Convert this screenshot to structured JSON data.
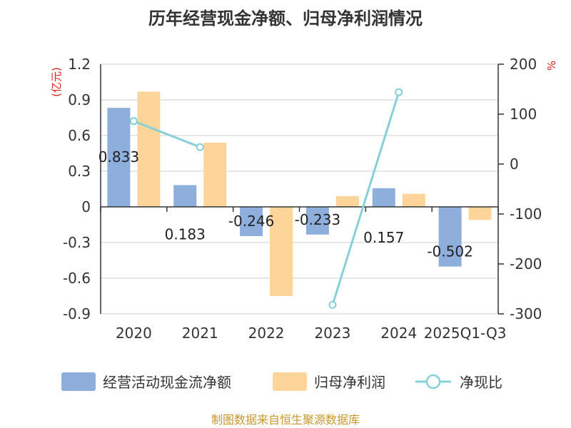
{
  "chart_data": {
    "type": "bar",
    "title": "历年经营现金净额、归母净利润情况",
    "categories": [
      "2020",
      "2021",
      "2022",
      "2023",
      "2024",
      "2025Q1-Q3"
    ],
    "y_left": {
      "unit": "(亿元)",
      "ylim": [
        -0.9,
        1.2
      ],
      "ticks": [
        "1.2",
        "0.9",
        "0.6",
        "0.3",
        "0",
        "-0.3",
        "-0.6",
        "-0.9"
      ]
    },
    "y_right": {
      "unit": "%",
      "ylim": [
        -300,
        200
      ],
      "ticks": [
        "200",
        "100",
        "0",
        "-100",
        "-200",
        "-300"
      ]
    },
    "series": [
      {
        "name": "经营活动现金流净额",
        "type": "bar",
        "axis": "left",
        "color": "#8eaedc",
        "values": [
          0.833,
          0.183,
          -0.246,
          -0.233,
          0.157,
          -0.502
        ],
        "labels": [
          "0.833",
          "0.183",
          "-0.246",
          "-0.233",
          "0.157",
          "-0.502"
        ]
      },
      {
        "name": "归母净利润",
        "type": "bar",
        "axis": "left",
        "color": "#fdd59a",
        "values": [
          0.97,
          0.54,
          -0.75,
          0.09,
          0.11,
          -0.11
        ]
      },
      {
        "name": "净现比",
        "type": "line",
        "axis": "right",
        "color": "#86d0d8",
        "values": [
          86,
          34,
          null,
          -282,
          144,
          null
        ]
      }
    ],
    "legend_position": "bottom",
    "grid": true
  },
  "source": "制图数据来自恒生聚源数据库"
}
